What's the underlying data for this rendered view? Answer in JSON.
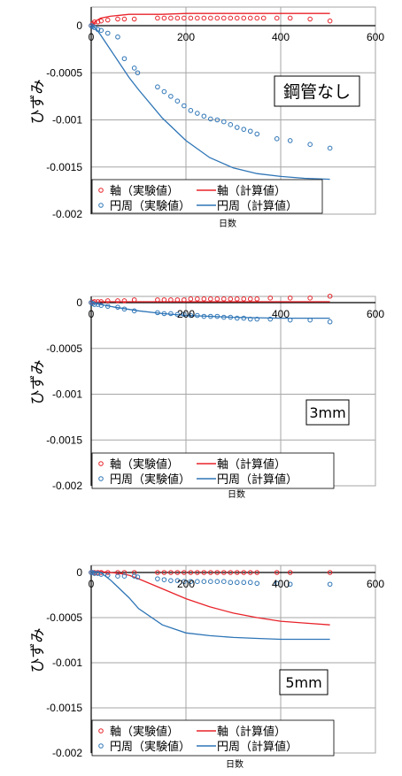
{
  "colors": {
    "axial": "#e8232a",
    "circ": "#2e75b6",
    "grid": "#a6a6a6"
  },
  "legend": {
    "axial_exp": "軸（実験値）",
    "axial_calc": "軸（計算値）",
    "circ_exp": "円周（実験値）",
    "circ_calc": "円周（計算値）"
  },
  "chart_data": [
    {
      "type": "scatter",
      "title": "",
      "tag": "鋼管なし",
      "xlabel": "日数",
      "ylabel": "ひずみ",
      "xlim": [
        0,
        600
      ],
      "ylim": [
        -0.002,
        0.0001
      ],
      "xticks": [
        0,
        200,
        400,
        600
      ],
      "yticks": [
        0,
        -0.0005,
        -0.001,
        -0.0015,
        -0.002
      ],
      "xtick_labels": [
        "0",
        "200",
        "400",
        "600"
      ],
      "ytick_labels": [
        "0",
        "-0.0005",
        "-0.001",
        "-0.0015",
        "-0.002"
      ],
      "grid": true,
      "legend_position": "bottom",
      "series": [
        {
          "name": "軸（実験値）",
          "kind": "points",
          "color": "#e8232a",
          "x": [
            0,
            3,
            7,
            14,
            21,
            35,
            56,
            70,
            91,
            140,
            154,
            168,
            182,
            196,
            210,
            224,
            238,
            252,
            266,
            280,
            294,
            308,
            322,
            336,
            350,
            364,
            392,
            420,
            462,
            504
          ],
          "y": [
            0,
            2e-05,
            4e-05,
            4e-05,
            5e-05,
            6e-05,
            7e-05,
            7e-05,
            7e-05,
            8e-05,
            8e-05,
            8e-05,
            8e-05,
            8e-05,
            8e-05,
            8e-05,
            8e-05,
            8e-05,
            8e-05,
            8e-05,
            8e-05,
            8e-05,
            8e-05,
            8e-05,
            8e-05,
            8e-05,
            8e-05,
            8e-05,
            7e-05,
            5e-05
          ]
        },
        {
          "name": "軸（計算値）",
          "kind": "line",
          "color": "#e8232a",
          "x": [
            0,
            10,
            20,
            40,
            60,
            80,
            100,
            150,
            200,
            250,
            300,
            350,
            400,
            450,
            504
          ],
          "y": [
            0,
            5e-05,
            8e-05,
            0.0001,
            0.00011,
            0.00012,
            0.00012,
            0.00012,
            0.00013,
            0.00013,
            0.00013,
            0.00013,
            0.00013,
            0.00013,
            0.00013
          ]
        },
        {
          "name": "円周（実験値）",
          "kind": "points",
          "color": "#2e75b6",
          "x": [
            0,
            3,
            7,
            14,
            21,
            35,
            56,
            70,
            91,
            98,
            140,
            154,
            168,
            182,
            196,
            210,
            224,
            238,
            252,
            266,
            280,
            294,
            308,
            322,
            336,
            350,
            392,
            420,
            462,
            504
          ],
          "y": [
            0,
            -1e-05,
            -2e-05,
            -4e-05,
            -5e-05,
            -8e-05,
            -0.00012,
            -0.00035,
            -0.00045,
            -0.0005,
            -0.00065,
            -0.0007,
            -0.00075,
            -0.0008,
            -0.00085,
            -0.0009,
            -0.00093,
            -0.00096,
            -0.00099,
            -0.001,
            -0.00102,
            -0.00105,
            -0.00108,
            -0.0011,
            -0.00112,
            -0.00115,
            -0.0012,
            -0.00122,
            -0.00126,
            -0.0013
          ]
        },
        {
          "name": "円周（計算値）",
          "kind": "line",
          "color": "#2e75b6",
          "x": [
            0,
            10,
            20,
            40,
            60,
            80,
            100,
            150,
            200,
            250,
            300,
            350,
            400,
            450,
            504
          ],
          "y": [
            0,
            -3e-05,
            -0.0001,
            -0.00025,
            -0.0004,
            -0.00055,
            -0.00068,
            -0.00098,
            -0.00122,
            -0.0014,
            -0.00151,
            -0.00157,
            -0.0016,
            -0.00162,
            -0.00163
          ]
        }
      ]
    },
    {
      "type": "scatter",
      "title": "",
      "tag": "3mm",
      "xlabel": "日数",
      "ylabel": "ひずみ",
      "xlim": [
        0,
        600
      ],
      "ylim": [
        -0.002,
        0.0001
      ],
      "xticks": [
        0,
        200,
        400,
        600
      ],
      "yticks": [
        0,
        -0.0005,
        -0.001,
        -0.0015,
        -0.002
      ],
      "xtick_labels": [
        "0",
        "200",
        "400",
        "600"
      ],
      "ytick_labels": [
        "0",
        "-0.0005",
        "-0.001",
        "-0.0015",
        "-0.002"
      ],
      "grid": true,
      "legend_position": "bottom",
      "series": [
        {
          "name": "軸（実験値）",
          "kind": "points",
          "color": "#e8232a",
          "x": [
            0,
            3,
            7,
            14,
            21,
            35,
            56,
            70,
            91,
            140,
            154,
            168,
            182,
            196,
            210,
            224,
            238,
            252,
            266,
            280,
            294,
            308,
            322,
            336,
            350,
            378,
            420,
            462,
            504
          ],
          "y": [
            0,
            5e-06,
            1e-05,
            1e-05,
            1e-05,
            2e-05,
            2e-05,
            2e-05,
            3e-05,
            3e-05,
            3e-05,
            3e-05,
            3e-05,
            3e-05,
            4e-05,
            4e-05,
            4e-05,
            4e-05,
            4e-05,
            4e-05,
            4e-05,
            4e-05,
            4e-05,
            4e-05,
            4e-05,
            5e-05,
            5e-05,
            5e-05,
            7e-05
          ]
        },
        {
          "name": "軸（計算値）",
          "kind": "line",
          "color": "#e8232a",
          "x": [
            0,
            20,
            50,
            100,
            150,
            200,
            300,
            400,
            504
          ],
          "y": [
            0,
            1e-05,
            1e-05,
            1e-05,
            1e-05,
            1e-05,
            1e-05,
            1e-05,
            1e-05
          ]
        },
        {
          "name": "円周（実験値）",
          "kind": "points",
          "color": "#2e75b6",
          "x": [
            0,
            3,
            7,
            14,
            21,
            35,
            56,
            70,
            91,
            140,
            154,
            168,
            182,
            196,
            210,
            224,
            238,
            252,
            266,
            280,
            294,
            308,
            322,
            336,
            350,
            378,
            420,
            462,
            504
          ],
          "y": [
            0,
            -1e-05,
            -2e-05,
            -2e-05,
            -3e-05,
            -4e-05,
            -5e-05,
            -7e-05,
            -9e-05,
            -0.00011,
            -0.00012,
            -0.00012,
            -0.00013,
            -0.00013,
            -0.00014,
            -0.00014,
            -0.00015,
            -0.00015,
            -0.00015,
            -0.00016,
            -0.00016,
            -0.00017,
            -0.00017,
            -0.00018,
            -0.00018,
            -0.00018,
            -0.00019,
            -0.00019,
            -0.00021
          ]
        },
        {
          "name": "円周（計算値）",
          "kind": "line",
          "color": "#2e75b6",
          "x": [
            0,
            20,
            50,
            100,
            150,
            200,
            250,
            300,
            400,
            504
          ],
          "y": [
            0,
            -2e-05,
            -5e-05,
            -9e-05,
            -0.00012,
            -0.00014,
            -0.00015,
            -0.00016,
            -0.00017,
            -0.00017
          ]
        }
      ]
    },
    {
      "type": "scatter",
      "title": "",
      "tag": "5mm",
      "xlabel": "日数",
      "ylabel": "ひずみ",
      "xlim": [
        0,
        600
      ],
      "ylim": [
        -0.002,
        0.0001
      ],
      "xticks": [
        0,
        200,
        400,
        600
      ],
      "yticks": [
        0,
        -0.0005,
        -0.001,
        -0.0015,
        -0.002
      ],
      "xtick_labels": [
        "0",
        "200",
        "400",
        "600"
      ],
      "ytick_labels": [
        "0",
        "-0.0005",
        "-0.001",
        "-0.0015",
        "-0.002"
      ],
      "grid": true,
      "legend_position": "bottom",
      "series": [
        {
          "name": "軸（実験値）",
          "kind": "points",
          "color": "#e8232a",
          "x": [
            0,
            3,
            7,
            14,
            21,
            35,
            56,
            70,
            91,
            140,
            154,
            168,
            182,
            196,
            210,
            224,
            238,
            252,
            266,
            280,
            294,
            308,
            322,
            336,
            350,
            392,
            420,
            504
          ],
          "y": [
            0,
            0,
            0,
            0,
            0,
            0,
            0,
            0,
            0,
            0,
            0,
            0,
            0,
            0,
            0,
            0,
            0,
            0,
            0,
            0,
            0,
            0,
            0,
            0,
            0,
            0,
            0,
            0
          ]
        },
        {
          "name": "軸（計算値）",
          "kind": "line",
          "color": "#e8232a",
          "x": [
            0,
            10,
            20,
            40,
            60,
            80,
            100,
            150,
            200,
            250,
            300,
            350,
            400,
            450,
            504
          ],
          "y": [
            0,
            1e-05,
            1e-05,
            0,
            -1e-05,
            -3e-05,
            -7e-05,
            -0.00018,
            -0.00029,
            -0.00038,
            -0.00045,
            -0.0005,
            -0.00054,
            -0.00056,
            -0.00058
          ]
        },
        {
          "name": "円周（実験値）",
          "kind": "points",
          "color": "#2e75b6",
          "x": [
            0,
            3,
            7,
            14,
            21,
            35,
            56,
            70,
            91,
            98,
            140,
            154,
            168,
            182,
            196,
            210,
            224,
            238,
            252,
            266,
            280,
            294,
            308,
            322,
            336,
            350,
            392,
            420,
            504
          ],
          "y": [
            0,
            0,
            -1e-05,
            -1e-05,
            -2e-05,
            -3e-05,
            -4e-05,
            -4e-05,
            -4e-05,
            -5e-05,
            -7e-05,
            -8e-05,
            -9e-05,
            -9e-05,
            -0.0001,
            -0.0001,
            -0.0001,
            -0.0001,
            -0.0001,
            -0.0001,
            -0.0001,
            -0.00011,
            -0.00011,
            -0.00011,
            -0.00011,
            -0.00012,
            -0.00012,
            -0.00013,
            -0.00013
          ]
        },
        {
          "name": "円周（計算値）",
          "kind": "line",
          "color": "#2e75b6",
          "x": [
            0,
            10,
            20,
            40,
            60,
            80,
            100,
            150,
            200,
            250,
            300,
            350,
            400,
            450,
            504
          ],
          "y": [
            0,
            1e-05,
            0,
            -8e-05,
            -0.00018,
            -0.00028,
            -0.0004,
            -0.00058,
            -0.00067,
            -0.0007,
            -0.00072,
            -0.00073,
            -0.00074,
            -0.00074,
            -0.00074
          ]
        }
      ]
    }
  ]
}
